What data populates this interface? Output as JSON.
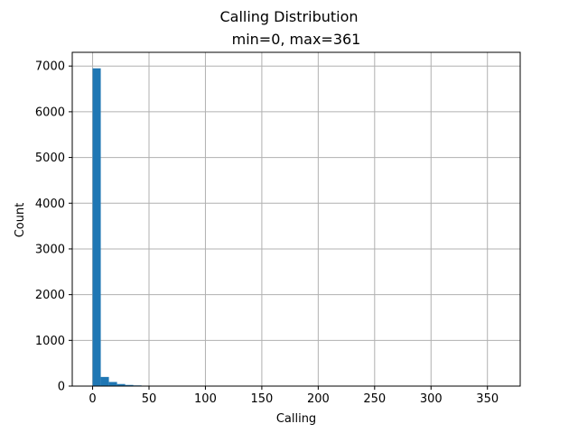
{
  "chart_data": {
    "type": "bar",
    "title": "Calling Distribution",
    "subtitle": "min=0, max=361",
    "xlabel": "Calling",
    "ylabel": "Count",
    "xlim": [
      -18.05,
      379.05
    ],
    "ylim": [
      0,
      7300
    ],
    "xticks": [
      0,
      50,
      100,
      150,
      200,
      250,
      300,
      350
    ],
    "yticks": [
      0,
      1000,
      2000,
      3000,
      4000,
      5000,
      6000,
      7000
    ],
    "grid": true,
    "bin_edges": [
      0,
      7.22,
      14.44,
      21.66,
      28.88,
      36.1,
      43.32,
      50.54,
      57.76,
      64.98,
      72.2,
      79.42,
      86.64,
      93.86,
      101.08,
      108.3,
      115.52,
      122.74,
      129.96,
      137.18,
      144.4,
      151.62,
      158.84,
      166.06,
      173.28,
      180.5,
      187.72,
      194.94,
      202.16,
      209.38,
      216.6,
      223.82,
      231.04,
      238.26,
      245.48,
      252.7,
      259.92,
      267.14,
      274.36,
      281.58,
      288.8,
      296.02,
      303.24,
      310.46,
      317.68,
      324.9,
      332.12,
      339.34,
      346.56,
      353.78,
      361
    ],
    "values": [
      6950,
      200,
      90,
      45,
      25,
      15,
      8,
      5,
      4,
      3,
      2,
      2,
      1,
      1,
      1,
      1,
      1,
      0,
      1,
      0,
      0,
      0,
      0,
      0,
      0,
      0,
      0,
      0,
      0,
      0,
      0,
      0,
      0,
      0,
      0,
      0,
      0,
      0,
      0,
      0,
      0,
      0,
      0,
      0,
      0,
      0,
      0,
      0,
      0,
      1
    ],
    "colors": {
      "bar": "#1f77b4",
      "grid": "#b0b0b0",
      "axis": "#000000"
    }
  }
}
